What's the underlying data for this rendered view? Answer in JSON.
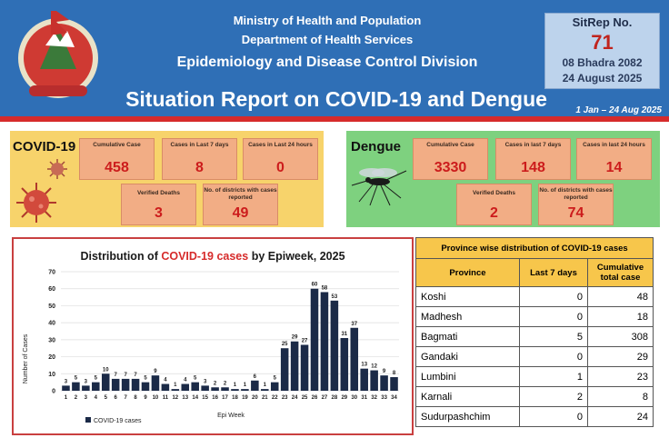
{
  "header": {
    "ministry": "Ministry of Health and Population",
    "department": "Department of Health Services",
    "division": "Epidemiology and Disease Control Division",
    "title": "Situation Report on COVID-19 and Dengue",
    "period": "1 Jan – 24 Aug 2025"
  },
  "sitrep": {
    "label": "SitRep No.",
    "number": "71",
    "nepali_date": "08 Bhadra 2082",
    "date": "24 August 2025"
  },
  "covid": {
    "title": "COVID-19",
    "cumulative_label": "Cumulative Case",
    "cumulative_value": "458",
    "last7_label": "Cases in Last 7 days",
    "last7_value": "8",
    "last24_label": "Cases in Last 24 hours",
    "last24_value": "0",
    "deaths_label": "Verified Deaths",
    "deaths_value": "3",
    "districts_label": "No. of districts with cases reported",
    "districts_value": "49"
  },
  "dengue": {
    "title": "Dengue",
    "cumulative_label": "Cumulative Case",
    "cumulative_value": "3330",
    "last7_label": "Cases in last 7 days",
    "last7_value": "148",
    "last24_label": "Cases in last 24 hours",
    "last24_value": "14",
    "deaths_label": "Verified Deaths",
    "deaths_value": "2",
    "districts_label": "No. of districts with cases reported",
    "districts_value": "74"
  },
  "chart_data": {
    "type": "bar",
    "title_prefix": "Distribution of ",
    "title_highlight": "COVID-19 cases",
    "title_suffix": " by Epiweek, 2025",
    "xlabel": "Epi Week",
    "ylabel": "Number of Cases",
    "ylim": [
      0,
      70
    ],
    "yticks": [
      0,
      10,
      20,
      30,
      40,
      50,
      60,
      70
    ],
    "legend": "COVID-19 cases",
    "color": "#1b2a47",
    "categories": [
      "1",
      "2",
      "3",
      "4",
      "5",
      "6",
      "7",
      "8",
      "9",
      "10",
      "11",
      "12",
      "13",
      "14",
      "15",
      "16",
      "17",
      "18",
      "19",
      "20",
      "21",
      "22",
      "23",
      "24",
      "25",
      "26",
      "27",
      "28",
      "29",
      "30",
      "31",
      "32",
      "33",
      "34"
    ],
    "values": [
      3,
      5,
      3,
      5,
      10,
      7,
      7,
      7,
      5,
      9,
      4,
      1,
      4,
      5,
      3,
      2,
      2,
      1,
      1,
      6,
      1,
      5,
      25,
      29,
      27,
      60,
      58,
      53,
      31,
      37,
      13,
      12,
      9,
      8
    ]
  },
  "province_table": {
    "title": "Province wise distribution  of COVID-19 cases",
    "headers": [
      "Province",
      "Last 7 days",
      "Cumulative total case"
    ],
    "rows": [
      [
        "Koshi",
        "0",
        "48"
      ],
      [
        "Madhesh",
        "0",
        "18"
      ],
      [
        "Bagmati",
        "5",
        "308"
      ],
      [
        "Gandaki",
        "0",
        "29"
      ],
      [
        "Lumbini",
        "1",
        "23"
      ],
      [
        "Karnali",
        "2",
        "8"
      ],
      [
        "Sudurpashchim",
        "0",
        "24"
      ]
    ]
  },
  "colors": {
    "header_blue": "#2f6fb6",
    "red": "#d62b2b",
    "covid_bg": "#f7d36b",
    "dengue_bg": "#7ed17f",
    "box": "#f2ad85",
    "value_red": "#cc1c1c"
  }
}
